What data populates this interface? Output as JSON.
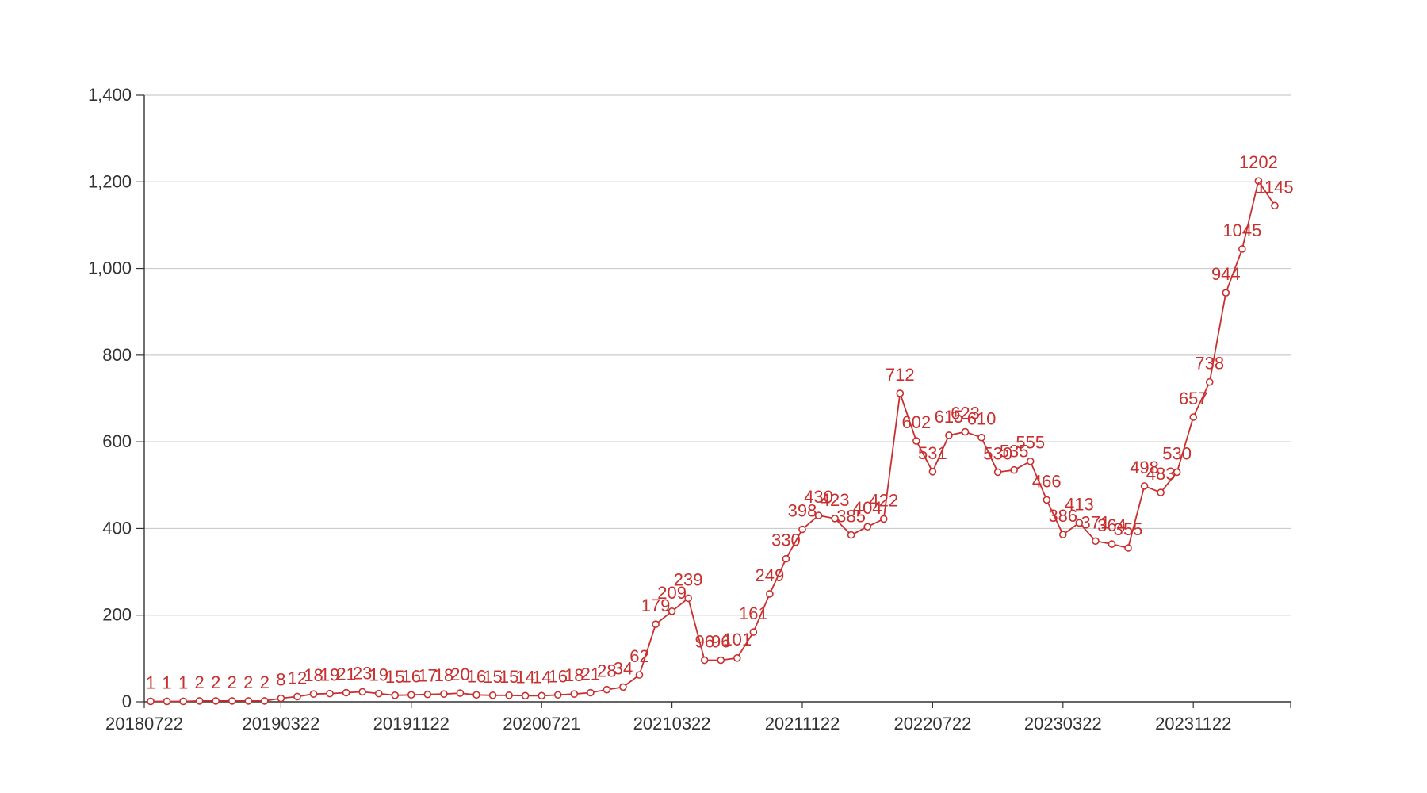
{
  "chart_data": {
    "type": "line",
    "title": "",
    "xlabel": "",
    "ylabel": "",
    "ylim": [
      0,
      1400
    ],
    "yticks": [
      0,
      200,
      400,
      600,
      800,
      1000,
      1200,
      1400
    ],
    "ytick_labels": [
      "0",
      "200",
      "400",
      "600",
      "800",
      "1,000",
      "1,200",
      "1,400"
    ],
    "xtick_labels": [
      "20180722",
      "20190322",
      "20191122",
      "20200721",
      "20210322",
      "20211122",
      "20220722",
      "20230322",
      "20231122"
    ],
    "xtick_every": 8,
    "grid": true,
    "series_color": "#c8302f",
    "values": [
      1,
      1,
      1,
      2,
      2,
      2,
      2,
      2,
      8,
      12,
      18,
      19,
      21,
      23,
      19,
      15,
      16,
      17,
      18,
      20,
      16,
      15,
      15,
      14,
      14,
      16,
      18,
      21,
      28,
      34,
      62,
      179,
      209,
      239,
      96,
      96,
      101,
      161,
      249,
      330,
      398,
      430,
      423,
      385,
      404,
      422,
      712,
      602,
      531,
      615,
      623,
      610,
      530,
      535,
      555,
      466,
      386,
      413,
      371,
      364,
      355,
      498,
      483,
      530,
      657,
      738,
      944,
      1045,
      1202,
      1145
    ]
  }
}
